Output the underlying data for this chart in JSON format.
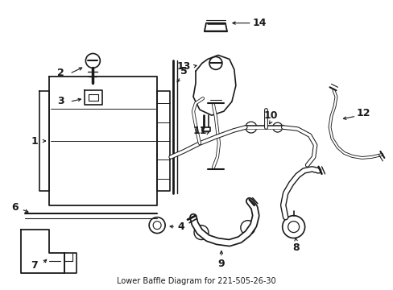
{
  "title": "Lower Baffle Diagram for 221-505-26-30",
  "bg_color": "#ffffff",
  "lc": "#1a1a1a",
  "figsize": [
    4.89,
    3.6
  ],
  "dpi": 100,
  "xlim": [
    0,
    489
  ],
  "ylim": [
    0,
    360
  ]
}
